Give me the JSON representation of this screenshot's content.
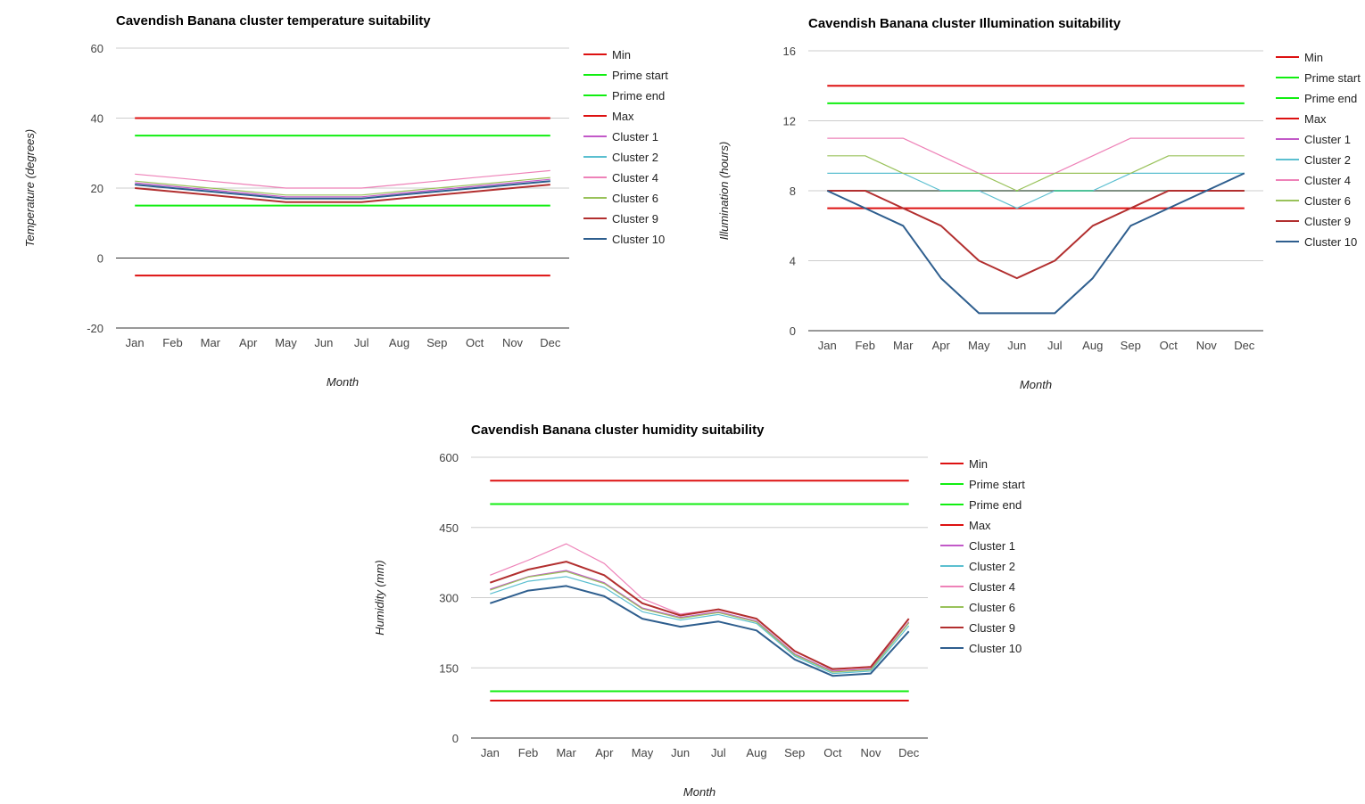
{
  "chart_data": [
    {
      "type": "line",
      "title": "Cavendish Banana cluster temperature suitability",
      "xlabel": "Month",
      "ylabel": "Temperature (degrees)",
      "ylim": [
        -20,
        60
      ],
      "yticks": [
        -20,
        0,
        20,
        40,
        60
      ],
      "grid": true,
      "legend_position": "right",
      "categories": [
        "Jan",
        "Feb",
        "Mar",
        "Apr",
        "May",
        "Jun",
        "Jul",
        "Aug",
        "Sep",
        "Oct",
        "Nov",
        "Dec"
      ],
      "series": [
        {
          "name": "Min",
          "color": "#dd1111",
          "values": [
            -5,
            -5,
            -5,
            -5,
            -5,
            -5,
            -5,
            -5,
            -5,
            -5,
            -5,
            -5
          ]
        },
        {
          "name": "Prime start",
          "color": "#11ee11",
          "values": [
            15,
            15,
            15,
            15,
            15,
            15,
            15,
            15,
            15,
            15,
            15,
            15
          ]
        },
        {
          "name": "Prime end",
          "color": "#11ee11",
          "values": [
            35,
            35,
            35,
            35,
            35,
            35,
            35,
            35,
            35,
            35,
            35,
            35
          ]
        },
        {
          "name": "Max",
          "color": "#dd1111",
          "values": [
            40,
            40,
            40,
            40,
            40,
            40,
            40,
            40,
            40,
            40,
            40,
            40
          ]
        },
        {
          "name": "Cluster 1",
          "color": "#c259c8",
          "values": [
            21.5,
            20.5,
            19.5,
            18.5,
            17.5,
            17.5,
            17.5,
            18.5,
            19.5,
            20.5,
            21.5,
            22.5
          ]
        },
        {
          "name": "Cluster 2",
          "color": "#5bbfd0",
          "values": [
            21,
            20,
            19,
            18,
            17,
            17,
            17,
            18,
            19,
            20,
            21,
            22
          ]
        },
        {
          "name": "Cluster 4",
          "color": "#ee82b8",
          "values": [
            24,
            23,
            22,
            21,
            20,
            20,
            20,
            21,
            22,
            23,
            24,
            25
          ]
        },
        {
          "name": "Cluster 6",
          "color": "#99c25a",
          "values": [
            22,
            21,
            20,
            19,
            18,
            18,
            18,
            19,
            20,
            21,
            22,
            23
          ]
        },
        {
          "name": "Cluster 9",
          "color": "#b22f2f",
          "values": [
            20,
            19,
            18,
            17,
            16,
            16,
            16,
            17,
            18,
            19,
            20,
            21
          ]
        },
        {
          "name": "Cluster 10",
          "color": "#2e5e8e",
          "values": [
            21,
            20,
            19,
            18,
            17,
            17,
            17,
            18,
            19,
            20,
            21,
            22
          ]
        }
      ]
    },
    {
      "type": "line",
      "title": "Cavendish Banana cluster Illumination suitability",
      "xlabel": "Month",
      "ylabel": "Illumination (hours)",
      "ylim": [
        0,
        16
      ],
      "yticks": [
        0,
        4,
        8,
        12,
        16
      ],
      "grid": true,
      "legend_position": "right",
      "categories": [
        "Jan",
        "Feb",
        "Mar",
        "Apr",
        "May",
        "Jun",
        "Jul",
        "Aug",
        "Sep",
        "Oct",
        "Nov",
        "Dec"
      ],
      "series": [
        {
          "name": "Min",
          "color": "#dd1111",
          "values": [
            7,
            7,
            7,
            7,
            7,
            7,
            7,
            7,
            7,
            7,
            7,
            7
          ]
        },
        {
          "name": "Prime start",
          "color": "#11ee11",
          "values": [
            8,
            8,
            8,
            8,
            8,
            8,
            8,
            8,
            8,
            8,
            8,
            8
          ]
        },
        {
          "name": "Prime end",
          "color": "#11ee11",
          "values": [
            13,
            13,
            13,
            13,
            13,
            13,
            13,
            13,
            13,
            13,
            13,
            13
          ]
        },
        {
          "name": "Max",
          "color": "#dd1111",
          "values": [
            14,
            14,
            14,
            14,
            14,
            14,
            14,
            14,
            14,
            14,
            14,
            14
          ]
        },
        {
          "name": "Cluster 1",
          "color": "#c259c8",
          "values": [
            8,
            8,
            8,
            8,
            8,
            8,
            8,
            8,
            8,
            8,
            8,
            8
          ]
        },
        {
          "name": "Cluster 2",
          "color": "#5bbfd0",
          "values": [
            9,
            9,
            9,
            8,
            8,
            7,
            8,
            8,
            9,
            9,
            9,
            9
          ]
        },
        {
          "name": "Cluster 4",
          "color": "#ee82b8",
          "values": [
            11,
            11,
            11,
            10,
            9,
            9,
            9,
            10,
            11,
            11,
            11,
            11
          ]
        },
        {
          "name": "Cluster 6",
          "color": "#99c25a",
          "values": [
            10,
            10,
            9,
            9,
            9,
            8,
            9,
            9,
            9,
            10,
            10,
            10
          ]
        },
        {
          "name": "Cluster 9",
          "color": "#b22f2f",
          "values": [
            8,
            8,
            7,
            6,
            4,
            3,
            4,
            6,
            7,
            8,
            8,
            8
          ]
        },
        {
          "name": "Cluster 10",
          "color": "#2e5e8e",
          "values": [
            8,
            7,
            6,
            3,
            1,
            1,
            1,
            3,
            6,
            7,
            8,
            9
          ]
        }
      ]
    },
    {
      "type": "line",
      "title": "Cavendish Banana cluster humidity suitability",
      "xlabel": "Month",
      "ylabel": "Humidity (mm)",
      "ylim": [
        0,
        600
      ],
      "yticks": [
        0,
        150,
        300,
        450,
        600
      ],
      "grid": true,
      "legend_position": "right",
      "categories": [
        "Jan",
        "Feb",
        "Mar",
        "Apr",
        "May",
        "Jun",
        "Jul",
        "Aug",
        "Sep",
        "Oct",
        "Nov",
        "Dec"
      ],
      "series": [
        {
          "name": "Min",
          "color": "#dd1111",
          "values": [
            80,
            80,
            80,
            80,
            80,
            80,
            80,
            80,
            80,
            80,
            80,
            80
          ]
        },
        {
          "name": "Prime start",
          "color": "#11ee11",
          "values": [
            100,
            100,
            100,
            100,
            100,
            100,
            100,
            100,
            100,
            100,
            100,
            100
          ]
        },
        {
          "name": "Prime end",
          "color": "#11ee11",
          "values": [
            500,
            500,
            500,
            500,
            500,
            500,
            500,
            500,
            500,
            500,
            500,
            500
          ]
        },
        {
          "name": "Max",
          "color": "#dd1111",
          "values": [
            550,
            550,
            550,
            550,
            550,
            550,
            550,
            550,
            550,
            550,
            550,
            550
          ]
        },
        {
          "name": "Cluster 1",
          "color": "#c259c8",
          "values": [
            318,
            345,
            358,
            332,
            278,
            258,
            270,
            250,
            180,
            143,
            148,
            248
          ]
        },
        {
          "name": "Cluster 2",
          "color": "#5bbfd0",
          "values": [
            308,
            335,
            345,
            322,
            270,
            252,
            264,
            245,
            175,
            138,
            143,
            240
          ]
        },
        {
          "name": "Cluster 4",
          "color": "#ee82b8",
          "values": [
            348,
            380,
            415,
            373,
            298,
            265,
            275,
            255,
            185,
            148,
            153,
            255
          ]
        },
        {
          "name": "Cluster 6",
          "color": "#99c25a",
          "values": [
            316,
            344,
            356,
            330,
            276,
            256,
            268,
            248,
            178,
            141,
            146,
            246
          ]
        },
        {
          "name": "Cluster 9",
          "color": "#b22f2f",
          "values": [
            332,
            360,
            377,
            348,
            288,
            262,
            275,
            255,
            186,
            147,
            152,
            255
          ]
        },
        {
          "name": "Cluster 10",
          "color": "#2e5e8e",
          "values": [
            288,
            315,
            325,
            303,
            255,
            238,
            249,
            230,
            168,
            133,
            138,
            228
          ]
        }
      ]
    }
  ]
}
